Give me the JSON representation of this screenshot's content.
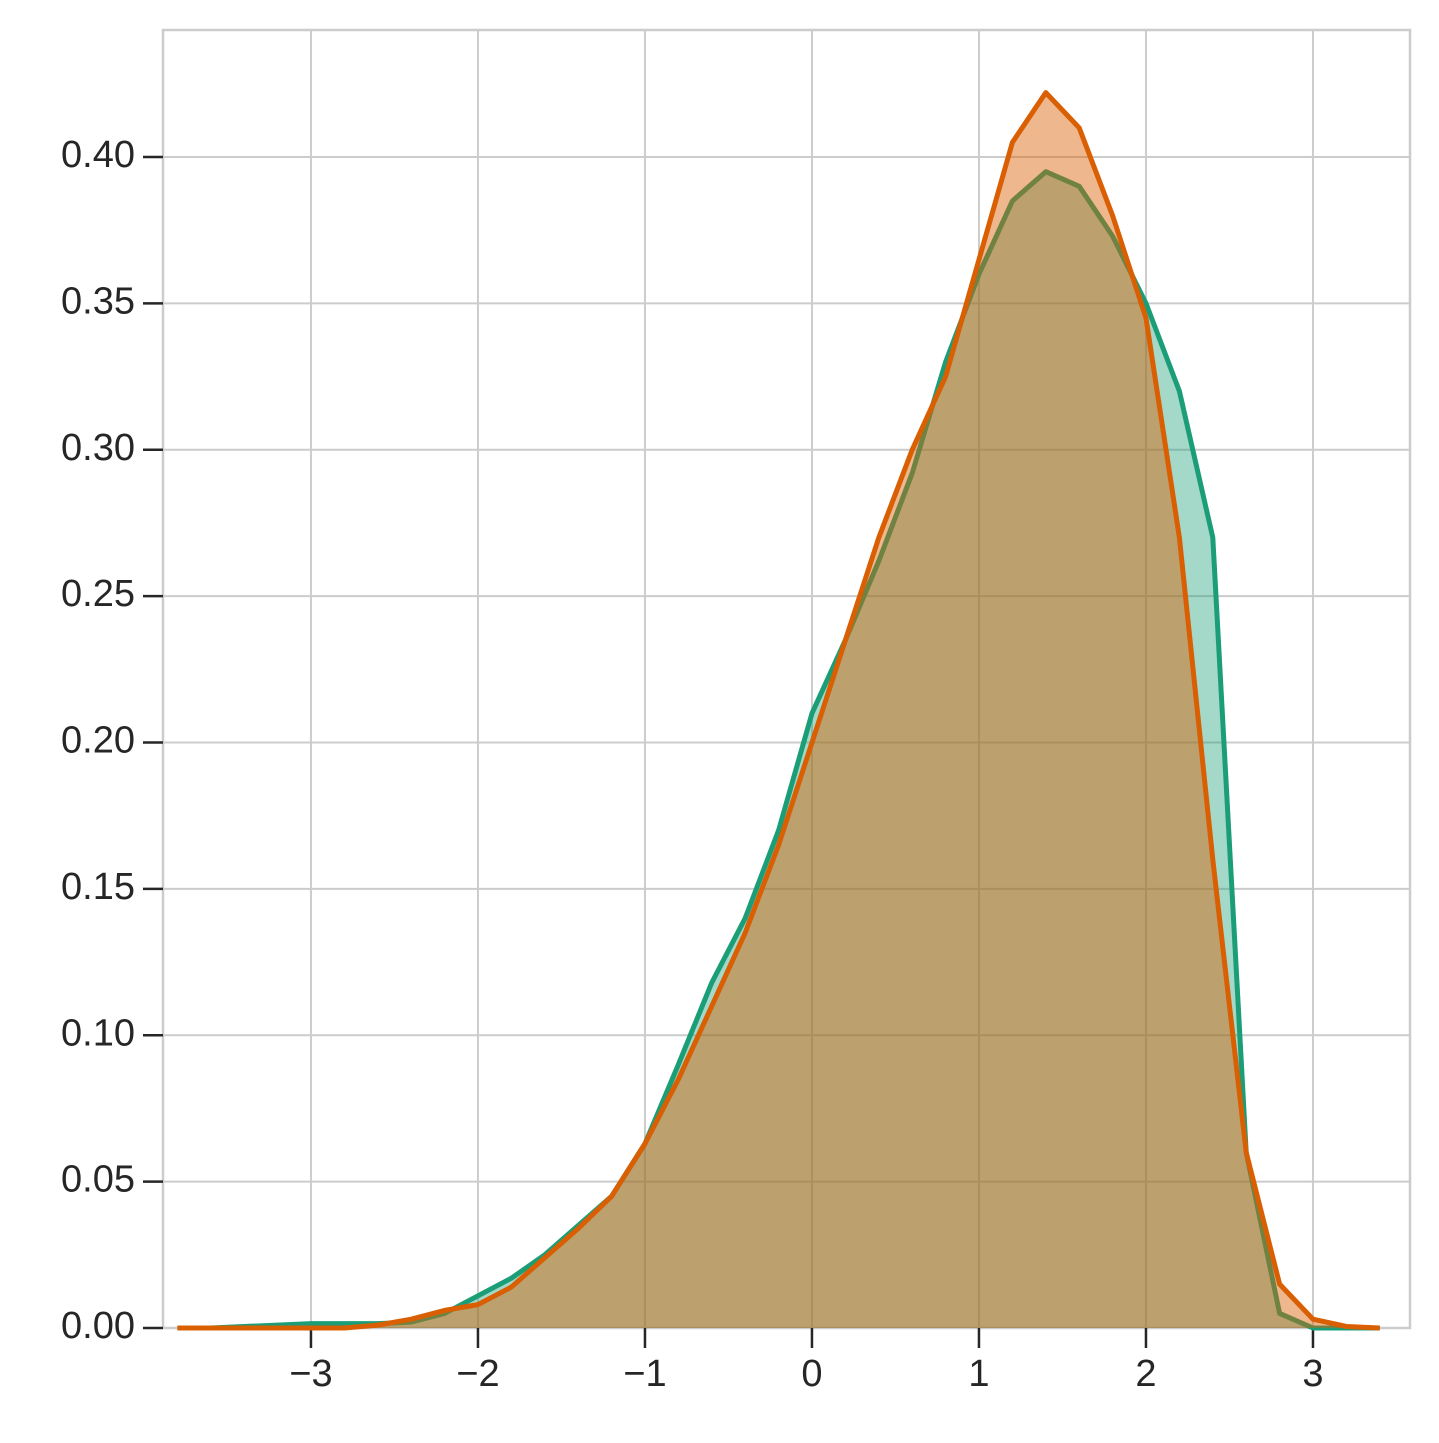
{
  "chart_data": {
    "type": "area",
    "x": [
      -3.8,
      -3.6,
      -3.4,
      -3.2,
      -3.0,
      -2.8,
      -2.6,
      -2.4,
      -2.2,
      -2.0,
      -1.8,
      -1.6,
      -1.4,
      -1.2,
      -1.0,
      -0.8,
      -0.6,
      -0.4,
      -0.2,
      0.0,
      0.2,
      0.4,
      0.6,
      0.8,
      1.0,
      1.2,
      1.4,
      1.6,
      1.8,
      2.0,
      2.2,
      2.4,
      2.6,
      2.8,
      3.0,
      3.2,
      3.4
    ],
    "series": [
      {
        "color": "#1b9e77",
        "values": [
          0,
          0,
          0.0005,
          0.001,
          0.0015,
          0.0015,
          0.0015,
          0.002,
          0.005,
          0.011,
          0.017,
          0.025,
          0.035,
          0.045,
          0.063,
          0.09,
          0.118,
          0.14,
          0.17,
          0.21,
          0.235,
          0.262,
          0.292,
          0.33,
          0.36,
          0.385,
          0.395,
          0.39,
          0.373,
          0.35,
          0.32,
          0.27,
          0.06,
          0.005,
          0,
          0,
          0
        ]
      },
      {
        "color": "#d95f02",
        "values": [
          0,
          0,
          0,
          0,
          0,
          0,
          0.001,
          0.003,
          0.006,
          0.008,
          0.014,
          0.024,
          0.034,
          0.045,
          0.063,
          0.085,
          0.11,
          0.135,
          0.165,
          0.2,
          0.235,
          0.27,
          0.3,
          0.325,
          0.365,
          0.405,
          0.422,
          0.41,
          0.38,
          0.345,
          0.27,
          0.16,
          0.06,
          0.015,
          0.003,
          0.0005,
          0
        ]
      }
    ],
    "xlim": [
      -3.886,
      3.581
    ],
    "ylim": [
      0,
      0.4434
    ],
    "xticks": [
      {
        "value": -3,
        "label": "−3"
      },
      {
        "value": -2,
        "label": "−2"
      },
      {
        "value": -1,
        "label": "−1"
      },
      0,
      1,
      2,
      3
    ],
    "yticks": [
      {
        "value": 0,
        "label": "0.00"
      },
      {
        "value": 0.05,
        "label": "0.05"
      },
      {
        "value": 0.1,
        "label": "0.10"
      },
      {
        "value": 0.15,
        "label": "0.15"
      },
      {
        "value": 0.2,
        "label": "0.20"
      },
      {
        "value": 0.25,
        "label": "0.25"
      },
      {
        "value": 0.3,
        "label": "0.30"
      },
      {
        "value": 0.35,
        "label": "0.35"
      },
      {
        "value": 0.4,
        "label": "0.40"
      }
    ],
    "grid": true
  }
}
